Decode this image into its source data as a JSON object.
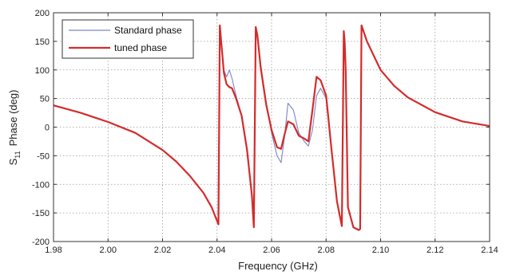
{
  "chart_data": {
    "type": "line",
    "title": "",
    "xlabel": "Frequency (GHz)",
    "ylabel_main": "S",
    "ylabel_sub": "11",
    "ylabel_rest": "Phase (deg)",
    "xlim": [
      1.98,
      2.14
    ],
    "ylim": [
      -200,
      200
    ],
    "xticks": [
      1.98,
      2.0,
      2.02,
      2.04,
      2.06,
      2.08,
      2.1,
      2.12,
      2.14
    ],
    "xtick_labels": [
      "1.98",
      "2.00",
      "2.02",
      "2.04",
      "2.06",
      "2.08",
      "2.10",
      "2.12",
      "2.14"
    ],
    "yticks": [
      -200,
      -150,
      -100,
      -50,
      0,
      50,
      100,
      150,
      200
    ],
    "ytick_labels": [
      "-200",
      "-150",
      "-100",
      "-50",
      "0",
      "50",
      "100",
      "150",
      "200"
    ],
    "grid": true,
    "legend_position": "top-left",
    "series": [
      {
        "name": "Standard phase",
        "color": "#7b86c4",
        "x": [
          1.98,
          1.99,
          2.0,
          2.01,
          2.02,
          2.025,
          2.03,
          2.035,
          2.038,
          2.0405,
          2.041,
          2.0415,
          2.0425,
          2.0435,
          2.0445,
          2.0455,
          2.047,
          2.049,
          2.051,
          2.0528,
          2.0535,
          2.0542,
          2.0548,
          2.056,
          2.058,
          2.06,
          2.062,
          2.0635,
          2.0648,
          2.066,
          2.068,
          2.07,
          2.072,
          2.0735,
          2.075,
          2.0765,
          2.078,
          2.08,
          2.082,
          2.084,
          2.0858,
          2.0865,
          2.0868,
          2.0872,
          2.088,
          2.09,
          2.092,
          2.0925,
          2.093,
          2.095,
          2.1,
          2.105,
          2.11,
          2.12,
          2.13,
          2.14
        ],
        "y": [
          38,
          25,
          9,
          -10,
          -40,
          -60,
          -85,
          -115,
          -140,
          -170,
          178,
          150,
          100,
          88,
          100,
          85,
          55,
          20,
          -40,
          -120,
          -175,
          175,
          160,
          110,
          45,
          -10,
          -50,
          -62,
          -15,
          42,
          30,
          -10,
          -25,
          -33,
          -5,
          55,
          68,
          50,
          -40,
          -130,
          -173,
          168,
          150,
          100,
          -140,
          -175,
          -180,
          -178,
          178,
          150,
          100,
          72,
          52,
          26,
          10,
          2
        ]
      },
      {
        "name": "tuned phase",
        "color": "#d42b2b",
        "x": [
          1.98,
          1.99,
          2.0,
          2.01,
          2.02,
          2.025,
          2.03,
          2.035,
          2.038,
          2.0405,
          2.041,
          2.0415,
          2.0425,
          2.0435,
          2.0445,
          2.0455,
          2.047,
          2.049,
          2.051,
          2.0528,
          2.0535,
          2.0542,
          2.0548,
          2.056,
          2.058,
          2.06,
          2.062,
          2.0635,
          2.0648,
          2.066,
          2.068,
          2.07,
          2.072,
          2.0735,
          2.075,
          2.0765,
          2.078,
          2.08,
          2.082,
          2.084,
          2.0858,
          2.0865,
          2.0868,
          2.0872,
          2.088,
          2.09,
          2.092,
          2.0925,
          2.093,
          2.095,
          2.1,
          2.105,
          2.11,
          2.12,
          2.13,
          2.14
        ],
        "y": [
          38,
          25,
          9,
          -10,
          -40,
          -60,
          -85,
          -115,
          -140,
          -170,
          178,
          150,
          95,
          75,
          70,
          68,
          50,
          20,
          -40,
          -120,
          -175,
          175,
          160,
          105,
          40,
          -5,
          -35,
          -38,
          -12,
          10,
          5,
          -15,
          -20,
          -25,
          30,
          88,
          82,
          55,
          -40,
          -130,
          -173,
          168,
          150,
          100,
          -140,
          -175,
          -180,
          -178,
          178,
          150,
          100,
          72,
          52,
          26,
          10,
          2
        ]
      }
    ]
  }
}
